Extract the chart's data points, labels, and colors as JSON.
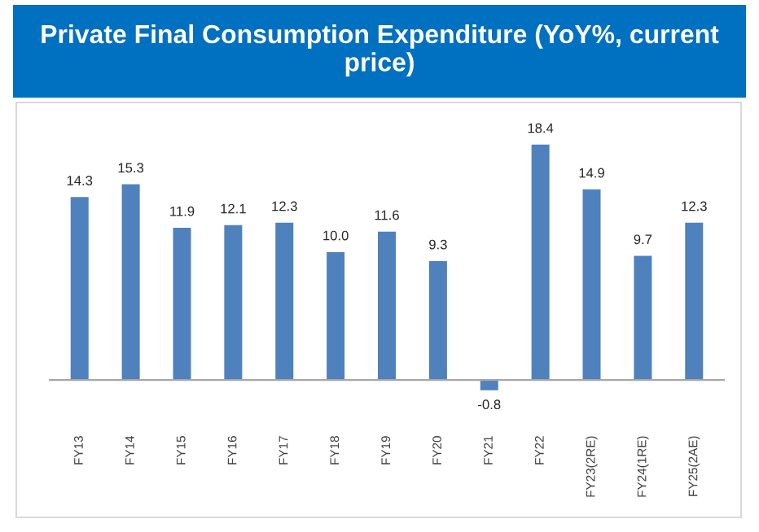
{
  "chart_data": {
    "type": "bar",
    "title": "Private Final Consumption Expenditure (YoY%, current price)",
    "categories": [
      "FY13",
      "FY14",
      "FY15",
      "FY16",
      "FY17",
      "FY18",
      "FY19",
      "FY20",
      "FY21",
      "FY22",
      "FY23(2RE)",
      "FY24(1RE)",
      "FY25(2AE)"
    ],
    "values": [
      14.3,
      15.3,
      11.9,
      12.1,
      12.3,
      10.0,
      11.6,
      9.3,
      -0.8,
      18.4,
      14.9,
      9.7,
      12.3
    ],
    "value_labels": [
      "14.3",
      "15.3",
      "11.9",
      "12.1",
      "12.3",
      "10.0",
      "11.6",
      "9.3",
      "-0.8",
      "18.4",
      "14.9",
      "9.7",
      "12.3"
    ],
    "color": "#4f81bd",
    "grid": false,
    "legend": false
  }
}
